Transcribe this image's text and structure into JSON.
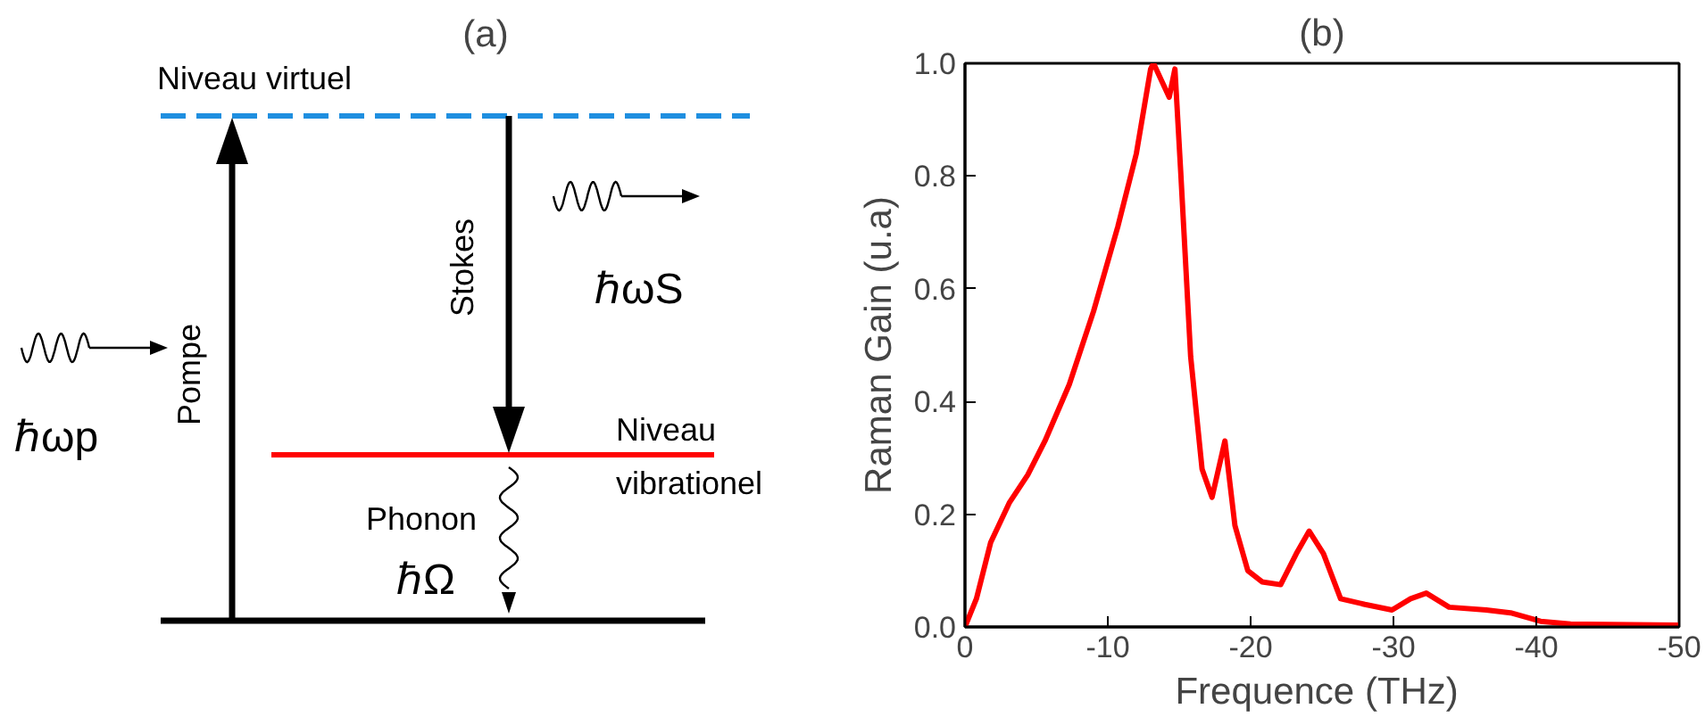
{
  "chart_data": [
    {
      "type": "other",
      "title": "(a)",
      "annotations": [
        "Niveau virtuel",
        "Stokes",
        "ℏωS",
        "Pompe",
        "ℏωp",
        "Niveau\nvibrationel",
        "Phonon",
        "ℏΩ"
      ]
    },
    {
      "type": "line",
      "title": "(b)",
      "xlabel": "Frequence  (THz)",
      "ylabel": "Raman Gain (u.a)",
      "xlim": [
        0,
        -50
      ],
      "ylim": [
        0,
        1.0
      ],
      "xticks": [
        0,
        -10,
        -20,
        -30,
        -40,
        -50
      ],
      "yticks": [
        {
          "value": 0,
          "label": "0.0"
        },
        {
          "value": 0.2,
          "label": "0.2"
        },
        {
          "value": 0.4,
          "label": "0.4"
        },
        {
          "value": 0.6,
          "label": "0.6"
        },
        {
          "value": 0.8,
          "label": "0.8"
        },
        {
          "value": 1.0,
          "label": "1.0"
        }
      ],
      "grid": false,
      "marker": "none",
      "line_style": "solid",
      "series": [
        {
          "color": "#ff0000",
          "x": [
            0,
            -0.8,
            -1.8,
            -3.1,
            -4.4,
            -5.6,
            -7.3,
            -9.0,
            -10.7,
            -12.0,
            -13.0,
            -13.2,
            -14.3,
            -14.7,
            -15.1,
            -15.8,
            -16.6,
            -17.3,
            -18.2,
            -18.9,
            -19.8,
            -20.8,
            -22.1,
            -23.2,
            -24.1,
            -25.1,
            -26.3,
            -28.0,
            -29.9,
            -31.2,
            -32.3,
            -33.9,
            -36.5,
            -38.2,
            -40.3,
            -42.4,
            -50
          ],
          "values": [
            0,
            0.05,
            0.15,
            0.22,
            0.27,
            0.33,
            0.43,
            0.56,
            0.71,
            0.84,
            0.99,
            1.0,
            0.94,
            0.99,
            0.81,
            0.48,
            0.28,
            0.23,
            0.33,
            0.18,
            0.1,
            0.08,
            0.075,
            0.13,
            0.17,
            0.13,
            0.05,
            0.04,
            0.03,
            0.05,
            0.06,
            0.035,
            0.03,
            0.025,
            0.01,
            0.005,
            0.003
          ]
        }
      ]
    }
  ]
}
